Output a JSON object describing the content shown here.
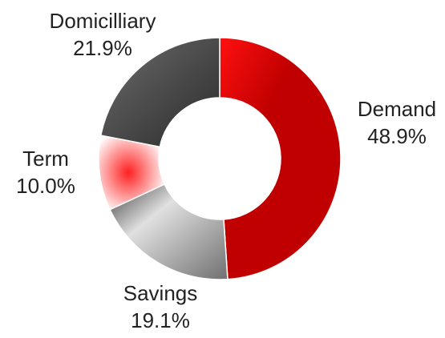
{
  "chart_data": {
    "type": "donut",
    "categories": [
      "Demand",
      "Savings",
      "Term",
      "Domicilliary"
    ],
    "values": [
      48.9,
      19.1,
      10.0,
      21.9
    ],
    "value_labels": [
      "48.9%",
      "19.1%",
      "10.0%",
      "21.9%"
    ],
    "colors": [
      "#c00000",
      "#b0b0b0",
      "#ff2020",
      "#555555"
    ]
  }
}
